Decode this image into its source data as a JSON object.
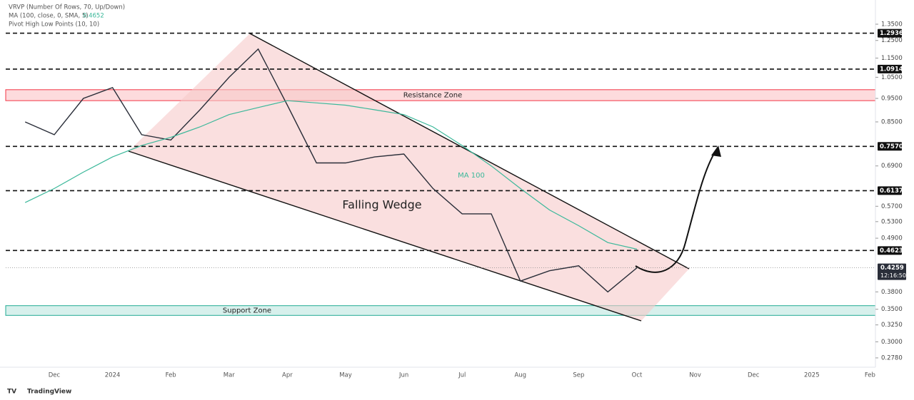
{
  "header": {
    "legend": [
      "VRVP (Number Of Rows, 70, Up/Down)",
      "MA (100, close, 0, SMA, 5)",
      "Pivot High Low Points (10, 10)"
    ],
    "ma_value": "0.4652"
  },
  "chart_data": {
    "type": "line",
    "log_scale": true,
    "grid": false,
    "categories": [
      null,
      "Dec",
      null,
      "2024",
      null,
      "Feb",
      null,
      "Mar",
      null,
      "Apr",
      null,
      "May",
      null,
      "Jun",
      null,
      "Jul",
      null,
      "Aug",
      null,
      "Sep",
      null,
      "Oct",
      null,
      "Nov",
      null,
      "Dec",
      null,
      "2025",
      null,
      "Feb"
    ],
    "series": [
      {
        "name": "Price",
        "color": "#2a2e39",
        "values": [
          0.85,
          0.8,
          0.95,
          1.0,
          0.8,
          0.78,
          0.9,
          1.05,
          1.2,
          0.92,
          0.7,
          0.7,
          0.72,
          0.73,
          0.62,
          0.55,
          0.55,
          0.4,
          0.42,
          0.43,
          0.38,
          0.4259,
          null,
          null,
          null,
          null,
          null,
          null,
          null,
          null
        ]
      },
      {
        "name": "MA 100",
        "color": "#3bb89a",
        "values": [
          0.58,
          0.62,
          0.67,
          0.72,
          0.76,
          0.79,
          0.83,
          0.88,
          0.91,
          0.94,
          0.93,
          0.92,
          0.9,
          0.88,
          0.83,
          0.76,
          0.69,
          0.62,
          0.56,
          0.52,
          0.48,
          0.4652,
          null,
          null,
          null,
          null,
          null,
          null,
          null,
          null
        ]
      }
    ],
    "ylim": [
      0.266,
      1.514
    ],
    "yticks": [
      {
        "value": 1.35,
        "label": "1.3500"
      },
      {
        "value": 1.25,
        "label": "1.2500"
      },
      {
        "value": 1.15,
        "label": "1.1500"
      },
      {
        "value": 1.05,
        "label": "1.0500"
      },
      {
        "value": 0.95,
        "label": "0.9500"
      },
      {
        "value": 0.85,
        "label": "0.8500"
      },
      {
        "value": 0.69,
        "label": "0.6900"
      },
      {
        "value": 0.57,
        "label": "0.5700"
      },
      {
        "value": 0.53,
        "label": "0.5300"
      },
      {
        "value": 0.49,
        "label": "0.4900"
      },
      {
        "value": 0.38,
        "label": "0.3800"
      },
      {
        "value": 0.35,
        "label": "0.3500"
      },
      {
        "value": 0.325,
        "label": "0.3250"
      },
      {
        "value": 0.3,
        "label": "0.3000"
      },
      {
        "value": 0.278,
        "label": "0.2780"
      }
    ],
    "levels": [
      {
        "value": 1.2936,
        "label": "1.2936"
      },
      {
        "value": 1.0914,
        "label": "1.0914"
      },
      {
        "value": 0.757,
        "label": "0.7570"
      },
      {
        "value": 0.6137,
        "label": "0.6137"
      },
      {
        "value": 0.4623,
        "label": "0.4623"
      }
    ],
    "current_price": {
      "value": 0.4259,
      "label": "0.4259",
      "time": "12:16:50"
    },
    "resistance_zone": {
      "label": "Resistance Zone",
      "range": [
        0.94,
        0.99
      ]
    },
    "support_zone": {
      "label": "Support Zone",
      "range": [
        0.34,
        0.356
      ]
    },
    "annotations": {
      "pattern": "Falling Wedge",
      "ma": "MA 100"
    },
    "footer": "TradingView"
  }
}
